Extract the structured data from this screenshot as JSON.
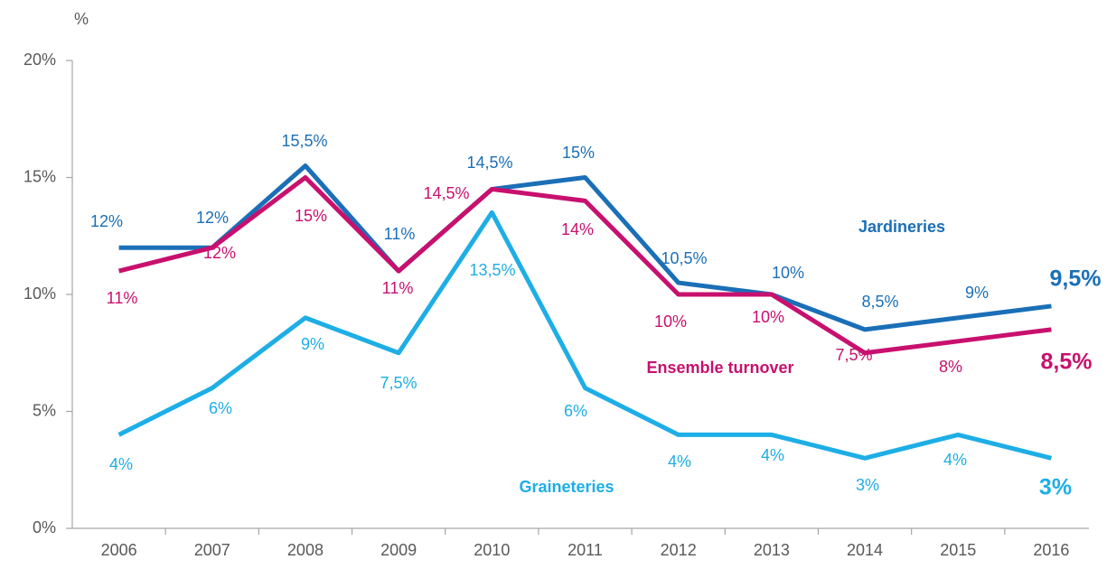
{
  "chart_data": {
    "type": "line",
    "y_label": "%",
    "categories": [
      "2006",
      "2007",
      "2008",
      "2009",
      "2010",
      "2011",
      "2012",
      "2013",
      "2014",
      "2015",
      "2016"
    ],
    "ylim": [
      0,
      20
    ],
    "yticks": [
      {
        "value": 0,
        "label": "0%"
      },
      {
        "value": 5,
        "label": "5%"
      },
      {
        "value": 10,
        "label": "10%"
      },
      {
        "value": 15,
        "label": "15%"
      },
      {
        "value": 20,
        "label": "20%"
      }
    ],
    "series": [
      {
        "name": "Jardineries",
        "color": "#1a6fb7",
        "values": [
          12,
          12,
          15.5,
          11,
          14.5,
          15,
          10.5,
          10,
          8.5,
          9,
          9.5
        ],
        "value_labels": [
          "12%",
          "12%",
          "15,5%",
          "11%",
          "14,5%",
          "15%",
          "10,5%",
          "10%",
          "8,5%",
          "9%",
          "9,5%"
        ]
      },
      {
        "name": "Ensemble turnover",
        "color": "#c8106e",
        "values": [
          11,
          12,
          15,
          11,
          14.5,
          14,
          10,
          10,
          7.5,
          8,
          8.5
        ],
        "value_labels": [
          "11%",
          "12%",
          "15%",
          "11%",
          "14,5%",
          "14%",
          "10%",
          "10%",
          "7,5%",
          "8%",
          "8,5%"
        ]
      },
      {
        "name": "Graineteries",
        "color": "#1eaee6",
        "values": [
          4,
          6,
          9,
          7.5,
          13.5,
          6,
          4,
          4,
          3,
          4,
          3
        ],
        "value_labels": [
          "4%",
          "6%",
          "9%",
          "7,5%",
          "13,5%",
          "6%",
          "4%",
          "4%",
          "3%",
          "4%",
          "3%"
        ]
      }
    ]
  }
}
